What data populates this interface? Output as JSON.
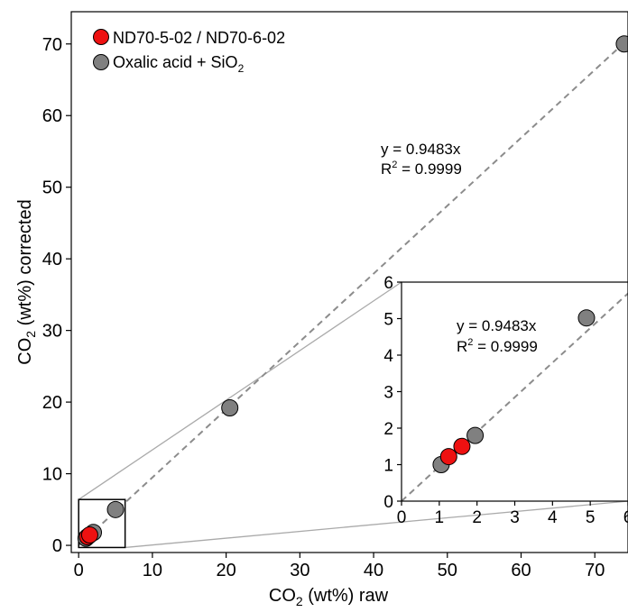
{
  "colors": {
    "series_red": "#ee1111",
    "series_gray": "#808080",
    "fit_line": "#8c8c8c",
    "connector": "#aaaaaa",
    "axis": "#000000"
  },
  "legend": {
    "entries": [
      {
        "label": "ND70-5-02 / ND70-6-02",
        "color": "#ee1111"
      },
      {
        "label": "Oxalic acid + SiO",
        "sub": "2",
        "color": "#808080"
      }
    ]
  },
  "chart_data": [
    {
      "id": "main",
      "type": "scatter",
      "xlabel": {
        "pre": "CO",
        "sub": "2",
        "post": " (wt%) raw"
      },
      "ylabel": {
        "pre": "CO",
        "sub": "2",
        "post": " (wt%) corrected"
      },
      "xlim": [
        -1,
        74.5
      ],
      "ylim": [
        -1,
        74.5
      ],
      "xticks": [
        0,
        10,
        20,
        30,
        40,
        50,
        60,
        70
      ],
      "yticks": [
        0,
        10,
        20,
        30,
        40,
        50,
        60,
        70
      ],
      "grid": false,
      "series": [
        {
          "name": "ND70-5-02 / ND70-6-02",
          "color": "#ee1111",
          "points": [
            [
              1.2,
              1.2
            ],
            [
              1.5,
              1.45
            ]
          ]
        },
        {
          "name": "Oxalic acid + SiO2",
          "color": "#808080",
          "points": [
            [
              1.0,
              1.0
            ],
            [
              2.0,
              1.8
            ],
            [
              5.0,
              5.0
            ],
            [
              20.5,
              19.2
            ],
            [
              74.0,
              70.0
            ]
          ]
        }
      ],
      "fit": {
        "slope": 0.9483,
        "equation": "y = 0.9483x",
        "r2_label": "R",
        "r2_sup": "2",
        "r2_value": " = 0.9999"
      },
      "zoom_box": {
        "x": [
          0,
          6.3
        ],
        "y": [
          -0.3,
          6.4
        ]
      }
    },
    {
      "id": "inset",
      "type": "scatter",
      "xlim": [
        0,
        6
      ],
      "ylim": [
        0,
        6
      ],
      "xticks": [
        0,
        1,
        2,
        3,
        4,
        5,
        6
      ],
      "yticks": [
        0,
        1,
        2,
        3,
        4,
        5,
        6
      ],
      "grid": false,
      "series": [
        {
          "name": "ND70-5-02 / ND70-6-02",
          "color": "#ee1111",
          "points": [
            [
              1.25,
              1.22
            ],
            [
              1.6,
              1.5
            ]
          ]
        },
        {
          "name": "Oxalic acid + SiO2",
          "color": "#808080",
          "points": [
            [
              1.05,
              1.0
            ],
            [
              1.95,
              1.8
            ],
            [
              4.9,
              5.02
            ]
          ]
        }
      ],
      "fit": {
        "slope": 0.9483,
        "equation": "y = 0.9483x",
        "r2_label": "R",
        "r2_sup": "2",
        "r2_value": " = 0.9999"
      }
    }
  ]
}
